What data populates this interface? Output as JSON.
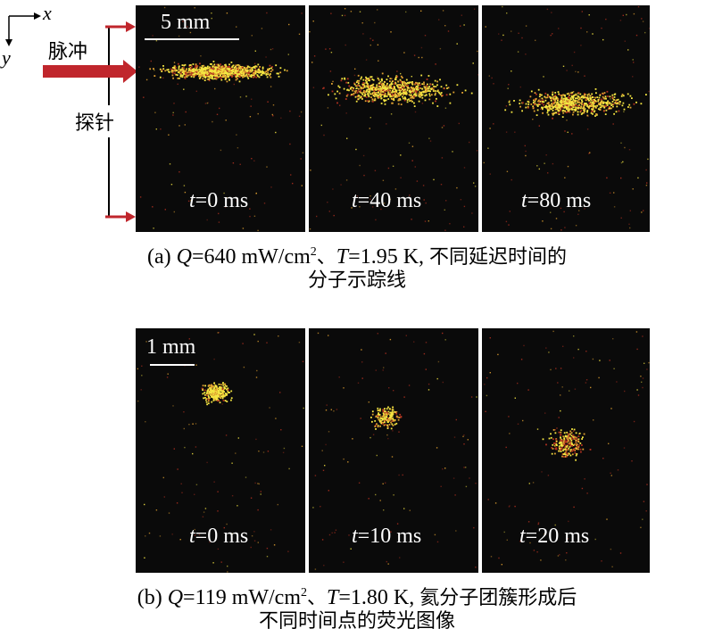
{
  "axes": {
    "x_label": "x",
    "y_label": "y"
  },
  "side": {
    "pulse_label": "脉冲",
    "probe_label": "探针",
    "arrow_color": "#c0262c"
  },
  "panel_a": {
    "scale_bar": "5 mm",
    "time_labels": [
      {
        "var": "t",
        "rest": "=0 ms"
      },
      {
        "var": "t",
        "rest": "=40 ms"
      },
      {
        "var": "t",
        "rest": "=80 ms"
      }
    ],
    "caption": {
      "prefix": "(a) ",
      "q_var": "Q",
      "q_value": "=640 mW/cm",
      "q_sup": "2",
      "sep": "、",
      "t_var": "T",
      "t_value": "=1.95 K, ",
      "cn_line1": "不同延迟时间的",
      "cn_line2": "分子示踪线"
    }
  },
  "panel_b": {
    "scale_bar": "1 mm",
    "time_labels": [
      {
        "var": "t",
        "rest": "=0 ms"
      },
      {
        "var": "t",
        "rest": "=10 ms"
      },
      {
        "var": "t",
        "rest": "=20 ms"
      }
    ],
    "caption": {
      "prefix": "(b) ",
      "q_var": "Q",
      "q_value": "=119 mW/cm",
      "q_sup": "2",
      "sep": "、",
      "t_var": "T",
      "t_value": "=1.80 K, ",
      "cn_line1": "氦分子团簇形成后",
      "cn_line2": "不同时间点的荧光图像"
    }
  },
  "colors": {
    "panel_bg": "#0a0a0a",
    "bright": "#f5e642",
    "mid": "#e0a030",
    "dim": "#b03020"
  }
}
